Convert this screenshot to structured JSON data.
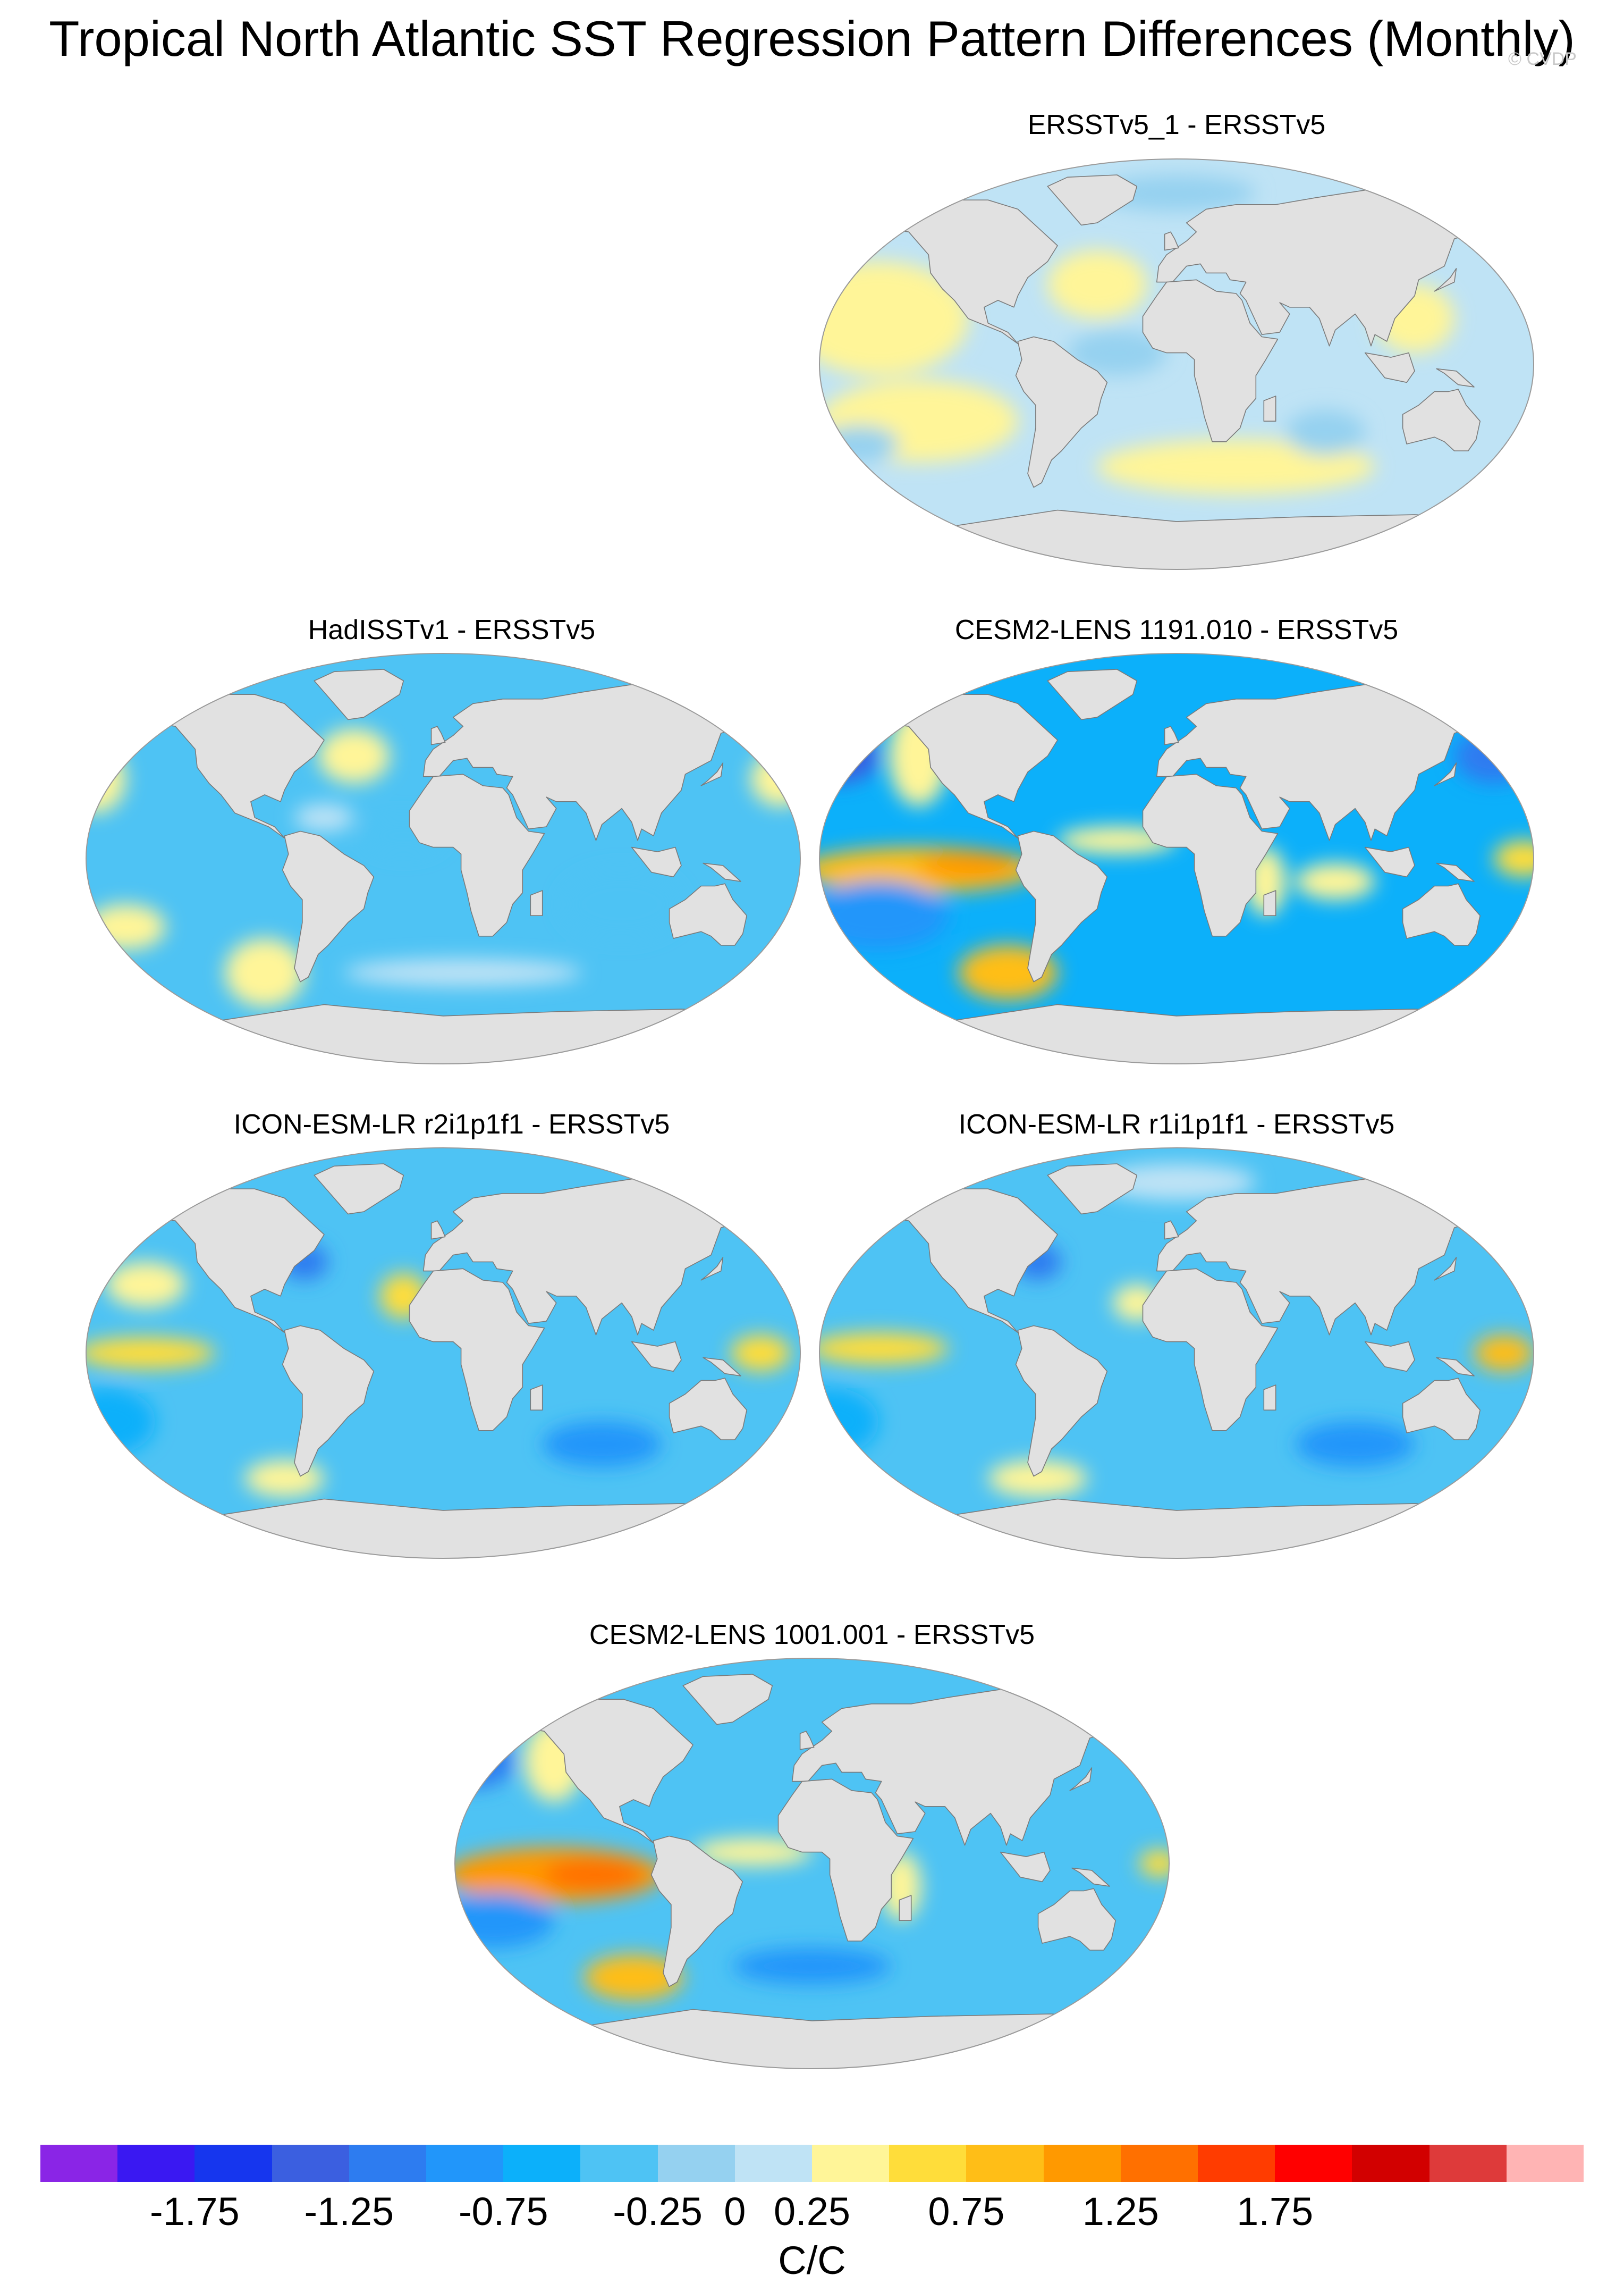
{
  "title": "Tropical North Atlantic SST Regression Pattern Differences (Monthly)",
  "watermark": "© CVDP",
  "colors": {
    "land": "#e1e1e1",
    "coast": "#7a7a7a",
    "scale": [
      "#8a25e6",
      "#3a18f2",
      "#1636ee",
      "#3b5fe0",
      "#2d7cf0",
      "#2196fa",
      "#0cb0fa",
      "#4ec3f4",
      "#95d1f0",
      "#bfe3f5",
      "#fff598",
      "#ffdd3a",
      "#ffbe17",
      "#ff9900",
      "#ff7000",
      "#ff3c00",
      "#ff0000",
      "#d20000",
      "#de3a3a",
      "#ffb4b4"
    ]
  },
  "chart_data": {
    "type": "heatmap",
    "units": "C/C",
    "colorbar": {
      "levels": [
        -2.0,
        -1.75,
        -1.5,
        -1.25,
        -1.0,
        -0.75,
        -0.5,
        -0.25,
        0,
        0.25,
        0.5,
        0.75,
        1.0,
        1.25,
        1.5,
        1.75,
        2.0
      ],
      "tick_labels": [
        "-1.75",
        "-1.25",
        "-0.75",
        "-0.25",
        "0",
        "0.25",
        "0.75",
        "1.25",
        "1.75"
      ],
      "tick_values": [
        -1.75,
        -1.25,
        -0.75,
        -0.25,
        0,
        0.25,
        0.75,
        1.25,
        1.75
      ]
    },
    "panels": [
      {
        "title": "ERSSTv5_1 - ERSSTv5",
        "background": 0.1,
        "features": [
          {
            "lon": -150,
            "lat": 20,
            "rx": 45,
            "ry": 25,
            "value": 0.35
          },
          {
            "lon": -130,
            "lat": -25,
            "rx": 50,
            "ry": 18,
            "value": 0.3
          },
          {
            "lon": -40,
            "lat": 35,
            "rx": 25,
            "ry": 15,
            "value": 0.4
          },
          {
            "lon": 30,
            "lat": -45,
            "rx": 70,
            "ry": 12,
            "value": 0.45
          },
          {
            "lon": 75,
            "lat": -30,
            "rx": 20,
            "ry": 10,
            "value": -0.15
          },
          {
            "lon": -30,
            "lat": 5,
            "rx": 25,
            "ry": 10,
            "value": -0.1
          },
          {
            "lon": -160,
            "lat": -35,
            "rx": 20,
            "ry": 8,
            "value": -0.2
          },
          {
            "lon": 0,
            "lat": 75,
            "rx": 40,
            "ry": 8,
            "value": -0.2
          },
          {
            "lon": 120,
            "lat": 20,
            "rx": 20,
            "ry": 15,
            "value": 0.3
          }
        ]
      },
      {
        "title": "HadISSTv1 - ERSSTv5",
        "background": -0.3,
        "features": [
          {
            "lon": -45,
            "lat": 45,
            "rx": 18,
            "ry": 12,
            "value": 0.45
          },
          {
            "lon": -175,
            "lat": 35,
            "rx": 15,
            "ry": 15,
            "value": 0.3
          },
          {
            "lon": -90,
            "lat": -50,
            "rx": 20,
            "ry": 15,
            "value": 0.4
          },
          {
            "lon": -160,
            "lat": -30,
            "rx": 20,
            "ry": 10,
            "value": 0.25
          },
          {
            "lon": 170,
            "lat": 35,
            "rx": 15,
            "ry": 12,
            "value": 0.25
          },
          {
            "lon": 10,
            "lat": -50,
            "rx": 60,
            "ry": 6,
            "value": 0.1
          },
          {
            "lon": -20,
            "lat": 10,
            "rx": 20,
            "ry": 8,
            "value": -0.5
          },
          {
            "lon": 90,
            "lat": -20,
            "rx": 30,
            "ry": 15,
            "value": -0.5
          },
          {
            "lon": -60,
            "lat": 18,
            "rx": 15,
            "ry": 6,
            "value": 0.2
          }
        ]
      },
      {
        "title": "CESM2-LENS 1191.010 - ERSSTv5",
        "background": -0.55,
        "features": [
          {
            "lon": -130,
            "lat": -5,
            "rx": 60,
            "ry": 10,
            "value": 0.8
          },
          {
            "lon": -105,
            "lat": -3,
            "rx": 25,
            "ry": 6,
            "value": 1.1
          },
          {
            "lon": -85,
            "lat": -50,
            "rx": 25,
            "ry": 12,
            "value": 0.75
          },
          {
            "lon": -130,
            "lat": 45,
            "rx": 15,
            "ry": 22,
            "value": 0.4
          },
          {
            "lon": 175,
            "lat": 0,
            "rx": 15,
            "ry": 8,
            "value": 0.6
          },
          {
            "lon": 45,
            "lat": -10,
            "rx": 10,
            "ry": 15,
            "value": 0.4
          },
          {
            "lon": -30,
            "lat": 8,
            "rx": 30,
            "ry": 6,
            "value": 0.3
          },
          {
            "lon": -170,
            "lat": 45,
            "rx": 20,
            "ry": 12,
            "value": -1.3
          },
          {
            "lon": 160,
            "lat": 45,
            "rx": 20,
            "ry": 12,
            "value": -1.2
          },
          {
            "lon": -150,
            "lat": -25,
            "rx": 35,
            "ry": 15,
            "value": -1.0
          },
          {
            "lon": 80,
            "lat": -10,
            "rx": 20,
            "ry": 8,
            "value": 0.3
          }
        ]
      },
      {
        "title": "ICON-ESM-LR r2i1p1f1 - ERSSTv5",
        "background": -0.45,
        "features": [
          {
            "lon": -150,
            "lat": 0,
            "rx": 35,
            "ry": 7,
            "value": 0.6
          },
          {
            "lon": 160,
            "lat": 0,
            "rx": 15,
            "ry": 8,
            "value": 0.7
          },
          {
            "lon": -20,
            "lat": 25,
            "rx": 12,
            "ry": 10,
            "value": 0.5
          },
          {
            "lon": -150,
            "lat": 30,
            "rx": 20,
            "ry": 10,
            "value": 0.25
          },
          {
            "lon": -80,
            "lat": -55,
            "rx": 20,
            "ry": 8,
            "value": 0.25
          },
          {
            "lon": -70,
            "lat": 40,
            "rx": 12,
            "ry": 8,
            "value": -1.2
          },
          {
            "lon": -170,
            "lat": -30,
            "rx": 25,
            "ry": 15,
            "value": -0.75
          },
          {
            "lon": 80,
            "lat": -40,
            "rx": 30,
            "ry": 10,
            "value": -0.8
          }
        ]
      },
      {
        "title": "ICON-ESM-LR r1i1p1f1 - ERSSTv5",
        "background": -0.5,
        "features": [
          {
            "lon": -150,
            "lat": 2,
            "rx": 35,
            "ry": 7,
            "value": 0.6
          },
          {
            "lon": 165,
            "lat": 0,
            "rx": 15,
            "ry": 8,
            "value": 0.75
          },
          {
            "lon": -20,
            "lat": 22,
            "rx": 12,
            "ry": 8,
            "value": 0.4
          },
          {
            "lon": -70,
            "lat": -55,
            "rx": 25,
            "ry": 8,
            "value": 0.25
          },
          {
            "lon": -70,
            "lat": 40,
            "rx": 12,
            "ry": 8,
            "value": -1.2
          },
          {
            "lon": -175,
            "lat": -30,
            "rx": 25,
            "ry": 15,
            "value": -0.75
          },
          {
            "lon": 90,
            "lat": -40,
            "rx": 30,
            "ry": 10,
            "value": -0.8
          },
          {
            "lon": 0,
            "lat": 75,
            "rx": 40,
            "ry": 8,
            "value": 0.1
          }
        ]
      },
      {
        "title": "CESM2-LENS 1001.001 - ERSSTv5",
        "background": -0.5,
        "features": [
          {
            "lon": -130,
            "lat": -5,
            "rx": 55,
            "ry": 12,
            "value": 1.0
          },
          {
            "lon": -110,
            "lat": -5,
            "rx": 25,
            "ry": 7,
            "value": 1.35
          },
          {
            "lon": -90,
            "lat": -50,
            "rx": 25,
            "ry": 10,
            "value": 0.9
          },
          {
            "lon": -130,
            "lat": 45,
            "rx": 15,
            "ry": 18,
            "value": 0.3
          },
          {
            "lon": 45,
            "lat": -10,
            "rx": 10,
            "ry": 15,
            "value": 0.4
          },
          {
            "lon": -30,
            "lat": 5,
            "rx": 30,
            "ry": 6,
            "value": 0.3
          },
          {
            "lon": -170,
            "lat": 45,
            "rx": 20,
            "ry": 12,
            "value": -1.2
          },
          {
            "lon": -160,
            "lat": -25,
            "rx": 30,
            "ry": 12,
            "value": -0.9
          },
          {
            "lon": 175,
            "lat": 0,
            "rx": 10,
            "ry": 6,
            "value": 0.6
          },
          {
            "lon": 0,
            "lat": -45,
            "rx": 40,
            "ry": 8,
            "value": -0.8
          }
        ]
      }
    ]
  }
}
